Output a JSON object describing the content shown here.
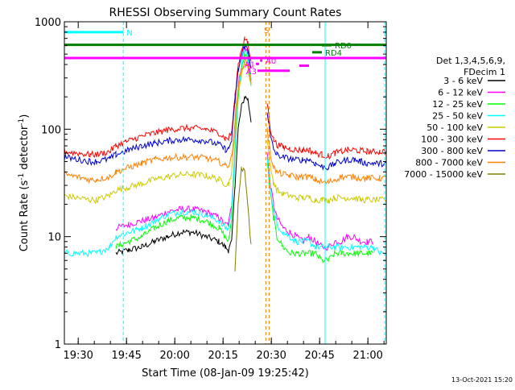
{
  "chart_data": {
    "type": "line",
    "title": "RHESSI Observing Summary Count Rates",
    "xlabel": "Start Time (08-Jan-09 19:25:42)",
    "ylabel_parts": [
      "Count Rate (s",
      "-1",
      " detector",
      "-1",
      ")"
    ],
    "x_unit": "minutes after 19:25:42",
    "x_range": [
      0,
      100
    ],
    "ylim": [
      1,
      1000
    ],
    "yscale": "log",
    "x_ticks": [
      {
        "label": "19:30",
        "x": 4.3
      },
      {
        "label": "19:45",
        "x": 19.3
      },
      {
        "label": "20:00",
        "x": 34.3
      },
      {
        "label": "20:15",
        "x": 49.3
      },
      {
        "label": "20:30",
        "x": 64.3
      },
      {
        "label": "20:45",
        "x": 79.3
      },
      {
        "label": "21:00",
        "x": 94.3
      }
    ],
    "y_ticks": [
      {
        "label": "1",
        "value": 1
      },
      {
        "label": "10",
        "value": 10
      },
      {
        "label": "100",
        "value": 100
      },
      {
        "label": "1000",
        "value": 1000
      }
    ],
    "legend": {
      "position": "right",
      "header": [
        "Det 1,3,4,5,6,9,",
        "FDecim 1"
      ]
    },
    "series": [
      {
        "name": "3 - 6 keV",
        "color": "#000000",
        "x": [
          0,
          8,
          10,
          14,
          16,
          20,
          24,
          28,
          32,
          36,
          40,
          44,
          48,
          50,
          51,
          52,
          53,
          54,
          55,
          56,
          57,
          58,
          59,
          60,
          61,
          62,
          63,
          64,
          65,
          66,
          68,
          70,
          72,
          74,
          76,
          78,
          80,
          82,
          84,
          86,
          88,
          90,
          92,
          94,
          96,
          98,
          100
        ],
        "y": [
          null,
          null,
          null,
          null,
          7,
          7.5,
          8,
          9,
          10,
          11,
          11,
          10,
          9,
          8,
          7.5,
          9,
          30,
          100,
          160,
          200,
          190,
          120,
          null,
          null,
          null,
          null,
          null,
          null,
          null,
          null,
          null,
          null,
          null,
          null,
          null,
          null,
          null,
          null,
          null,
          null,
          null,
          null,
          null,
          null,
          null,
          null,
          null
        ]
      },
      {
        "name": "6 - 12 keV",
        "color": "#ff00ff",
        "x": [
          0,
          8,
          10,
          14,
          16,
          20,
          24,
          28,
          32,
          36,
          40,
          44,
          48,
          50,
          51,
          52,
          53,
          54,
          55,
          56,
          57,
          58,
          59,
          60,
          61,
          62,
          63,
          64,
          65,
          66,
          68,
          70,
          72,
          74,
          76,
          78,
          80,
          82,
          84,
          86,
          88,
          90,
          92,
          94,
          96,
          98,
          100
        ],
        "y": [
          null,
          null,
          null,
          null,
          12,
          13,
          14,
          15,
          17,
          18,
          18,
          17,
          15,
          13,
          13,
          20,
          70,
          250,
          400,
          600,
          500,
          300,
          null,
          null,
          null,
          null,
          60,
          30,
          20,
          15,
          12,
          11,
          10,
          9,
          10,
          9,
          8,
          8,
          9,
          9,
          10,
          10,
          9,
          9,
          9,
          null,
          null
        ]
      },
      {
        "name": "12 - 25 keV",
        "color": "#00ff00",
        "x": [
          0,
          8,
          10,
          14,
          16,
          20,
          24,
          28,
          32,
          36,
          40,
          44,
          48,
          50,
          51,
          52,
          53,
          54,
          55,
          56,
          57,
          58,
          59,
          60,
          61,
          62,
          63,
          64,
          65,
          66,
          68,
          70,
          72,
          74,
          76,
          78,
          80,
          82,
          84,
          86,
          88,
          90,
          92,
          94,
          96,
          98,
          100
        ],
        "y": [
          null,
          null,
          null,
          null,
          8,
          9,
          10,
          12,
          14,
          15,
          15,
          14,
          12,
          10,
          9,
          15,
          60,
          200,
          350,
          500,
          450,
          250,
          null,
          null,
          null,
          null,
          50,
          25,
          15,
          10,
          8,
          7,
          7,
          7,
          7,
          7,
          6,
          6,
          7,
          7,
          7,
          7,
          7,
          7,
          7,
          null,
          null
        ]
      },
      {
        "name": "25 - 50 keV",
        "color": "#00ffff",
        "x": [
          0,
          8,
          10,
          14,
          16,
          20,
          24,
          28,
          32,
          36,
          40,
          44,
          48,
          50,
          51,
          52,
          53,
          54,
          55,
          56,
          57,
          58,
          59,
          60,
          61,
          62,
          63,
          64,
          65,
          66,
          68,
          70,
          72,
          74,
          76,
          78,
          80,
          82,
          84,
          86,
          88,
          90,
          92,
          94,
          96,
          98,
          100
        ],
        "y": [
          7,
          7,
          7,
          8,
          10,
          11,
          12,
          14,
          16,
          17,
          17,
          16,
          14,
          12,
          12,
          18,
          70,
          220,
          380,
          550,
          480,
          280,
          null,
          null,
          null,
          null,
          55,
          28,
          18,
          13,
          11,
          10,
          9,
          9,
          9,
          8,
          8,
          8,
          8,
          8,
          8,
          8,
          8,
          8,
          8,
          7,
          7
        ]
      },
      {
        "name": "50 - 100 keV",
        "color": "#cccc00",
        "x": [
          0,
          8,
          10,
          14,
          16,
          20,
          24,
          28,
          32,
          36,
          40,
          44,
          48,
          50,
          51,
          52,
          53,
          54,
          55,
          56,
          57,
          58,
          59,
          60,
          61,
          62,
          63,
          64,
          65,
          66,
          68,
          70,
          72,
          74,
          76,
          78,
          80,
          82,
          84,
          86,
          88,
          90,
          92,
          94,
          96,
          98,
          100
        ],
        "y": [
          24,
          22,
          22,
          24,
          27,
          29,
          31,
          34,
          36,
          38,
          38,
          37,
          34,
          31,
          31,
          40,
          100,
          220,
          320,
          420,
          380,
          260,
          null,
          null,
          null,
          null,
          80,
          45,
          32,
          27,
          25,
          24,
          23,
          23,
          23,
          22,
          22,
          22,
          23,
          23,
          23,
          23,
          22,
          22,
          22,
          22,
          22
        ]
      },
      {
        "name": "100 - 300 keV",
        "color": "#ff0000",
        "x": [
          0,
          8,
          10,
          14,
          16,
          20,
          24,
          28,
          32,
          36,
          40,
          44,
          48,
          50,
          51,
          52,
          53,
          54,
          55,
          56,
          57,
          58,
          59,
          60,
          61,
          62,
          63,
          64,
          65,
          66,
          68,
          70,
          72,
          74,
          76,
          78,
          80,
          82,
          84,
          86,
          88,
          90,
          92,
          94,
          96,
          98,
          100
        ],
        "y": [
          62,
          58,
          58,
          62,
          70,
          78,
          86,
          92,
          98,
          102,
          102,
          100,
          92,
          82,
          82,
          95,
          200,
          400,
          550,
          700,
          620,
          420,
          null,
          null,
          null,
          null,
          180,
          100,
          80,
          72,
          68,
          66,
          64,
          64,
          64,
          60,
          58,
          56,
          60,
          62,
          64,
          64,
          63,
          62,
          62,
          62,
          62
        ]
      },
      {
        "name": "300 - 800 keV",
        "color": "#0000cc",
        "x": [
          0,
          8,
          10,
          14,
          16,
          20,
          24,
          28,
          32,
          36,
          40,
          44,
          48,
          50,
          51,
          52,
          53,
          54,
          55,
          56,
          57,
          58,
          59,
          60,
          61,
          62,
          63,
          64,
          65,
          66,
          68,
          70,
          72,
          74,
          76,
          78,
          80,
          82,
          84,
          86,
          88,
          90,
          92,
          94,
          96,
          98,
          100
        ],
        "y": [
          55,
          50,
          50,
          53,
          58,
          64,
          70,
          74,
          78,
          80,
          80,
          78,
          72,
          65,
          65,
          80,
          180,
          350,
          480,
          600,
          540,
          380,
          null,
          null,
          null,
          null,
          150,
          85,
          65,
          58,
          55,
          53,
          52,
          52,
          52,
          48,
          45,
          44,
          48,
          50,
          52,
          52,
          50,
          48,
          48,
          48,
          48
        ]
      },
      {
        "name": "800 - 7000 keV",
        "color": "#ff8000",
        "x": [
          0,
          8,
          10,
          14,
          16,
          20,
          24,
          28,
          32,
          36,
          40,
          44,
          48,
          50,
          51,
          52,
          53,
          54,
          55,
          56,
          57,
          58,
          59,
          60,
          61,
          62,
          63,
          64,
          65,
          66,
          68,
          70,
          72,
          74,
          76,
          78,
          80,
          82,
          84,
          86,
          88,
          90,
          92,
          94,
          96,
          98,
          100
        ],
        "y": [
          38,
          34,
          34,
          36,
          40,
          44,
          48,
          52,
          54,
          55,
          55,
          54,
          50,
          46,
          46,
          55,
          120,
          250,
          350,
          450,
          400,
          280,
          null,
          null,
          null,
          null,
          100,
          58,
          45,
          40,
          38,
          37,
          36,
          36,
          36,
          34,
          32,
          32,
          34,
          36,
          36,
          36,
          35,
          35,
          35,
          35,
          35
        ]
      },
      {
        "name": "7000 - 15000 keV",
        "color": "#808000",
        "x": [
          0,
          8,
          10,
          14,
          16,
          20,
          24,
          28,
          32,
          36,
          40,
          44,
          48,
          50,
          51,
          52,
          53,
          54,
          55,
          56,
          57,
          58,
          59,
          60,
          61,
          62,
          63,
          64,
          65,
          66,
          68,
          70,
          72,
          74,
          76,
          78,
          80,
          82,
          84,
          86,
          88,
          90,
          92,
          94,
          96,
          98,
          100
        ],
        "y": [
          null,
          null,
          null,
          null,
          null,
          null,
          null,
          null,
          null,
          null,
          null,
          null,
          null,
          null,
          null,
          null,
          5,
          20,
          42,
          40,
          20,
          8,
          null,
          null,
          null,
          null,
          null,
          null,
          null,
          null,
          null,
          null,
          null,
          null,
          null,
          null,
          null,
          null,
          null,
          null,
          null,
          null,
          null,
          null,
          null,
          null,
          null
        ]
      }
    ],
    "annotations": {
      "vertical_lines": [
        {
          "x": 0,
          "color": "#00ffff",
          "style": "dashed"
        },
        {
          "x": 18.3,
          "color": "#00ffff",
          "style": "dashed"
        },
        {
          "x": 81,
          "color": "#00ffff",
          "style": "solid"
        },
        {
          "x": 99.5,
          "color": "#00ffff",
          "style": "dashed"
        },
        {
          "x": 62.6,
          "color": "#ff8000",
          "style": "dashed"
        },
        {
          "x": 63.6,
          "color": "#ff8000",
          "style": "dashed"
        }
      ],
      "bars": [
        {
          "label": "N",
          "color": "#00ffff",
          "y": 800,
          "segments": [
            [
              0,
              18.3
            ],
            [
              99.5,
              100
            ]
          ]
        },
        {
          "label": "",
          "color": "#008000",
          "y": 610,
          "segments": [
            [
              0,
              100
            ]
          ]
        },
        {
          "label": "",
          "color": "#ff00ff",
          "y": 460,
          "segments": [
            [
              0,
              100
            ]
          ]
        },
        {
          "label": "RD0",
          "color": "#008000",
          "y": 605,
          "segments": [
            [
              80,
              83
            ]
          ]
        },
        {
          "label": "RD4",
          "color": "#008000",
          "y": 520,
          "segments": [
            [
              77,
              80
            ]
          ]
        },
        {
          "label": "",
          "color": "#ff00ff",
          "y": 390,
          "segments": [
            [
              73,
              76
            ]
          ]
        },
        {
          "label": "A3",
          "color": "#ff00ff",
          "y": 350,
          "segments": [
            [
              60,
              70
            ]
          ]
        },
        {
          "label": "A1",
          "color": "#ff00ff",
          "y": 405,
          "segments": [
            [
              59.5,
              60.5
            ]
          ]
        },
        {
          "label": "A0",
          "color": "#ff00ff",
          "y": 435,
          "segments": [
            [
              60.8,
              61.5
            ]
          ]
        },
        {
          "label": "S",
          "color": "#ff8000",
          "y": 840,
          "segments": []
        }
      ]
    }
  },
  "footer": {
    "timestamp": "13-Oct-2021 15:20"
  }
}
